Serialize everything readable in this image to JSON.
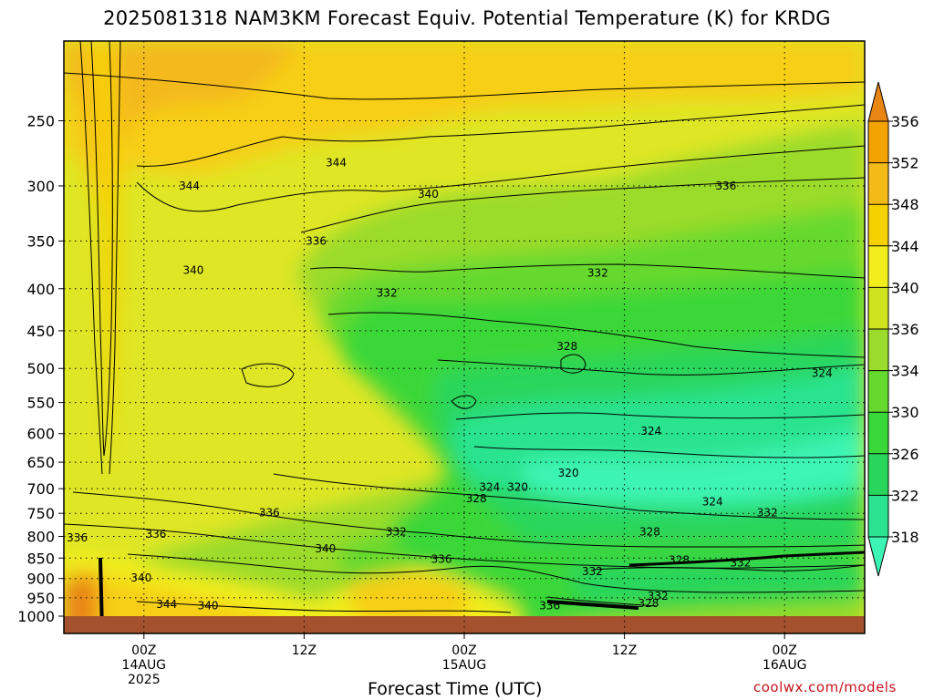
{
  "page": {
    "title": "2025081318 NAM3KM Forecast Equiv. Potential Temperature (K) for KRDG",
    "credit": "coolwx.com/models"
  },
  "chart_data": {
    "type": "heatmap",
    "title": "2025081318 NAM3KM Forecast Equiv. Potential Temperature (K) for KRDG",
    "xlabel": "Forecast Time (UTC)",
    "ylabel": "",
    "y_scale": "log (pressure, inverted)",
    "ylim": [
      1000,
      200
    ],
    "y_ticks": [
      250,
      300,
      350,
      400,
      450,
      500,
      550,
      600,
      650,
      700,
      750,
      800,
      850,
      900,
      950,
      1000
    ],
    "x_ticks": [
      {
        "hour": 6,
        "label": [
          "00Z",
          "14AUG",
          "2025"
        ]
      },
      {
        "hour": 18,
        "label": [
          "12Z"
        ]
      },
      {
        "hour": 30,
        "label": [
          "00Z",
          "15AUG"
        ]
      },
      {
        "hour": 42,
        "label": [
          "12Z"
        ]
      },
      {
        "hour": 54,
        "label": [
          "00Z",
          "16AUG"
        ]
      }
    ],
    "xlim_hours": [
      0,
      60
    ],
    "colorbar": {
      "levels": [
        318,
        322,
        326,
        330,
        334,
        336,
        340,
        344,
        348,
        352,
        356
      ],
      "colors": [
        "#3cf5b4",
        "#2ae38f",
        "#29d65c",
        "#3ad739",
        "#66d92f",
        "#9adb2c",
        "#cfe41f",
        "#f2ee1d",
        "#f6d100",
        "#f4ba18",
        "#f2a300",
        "#e98513"
      ],
      "placement": "right"
    },
    "contour_labels": [
      {
        "value": "344",
        "t": 20.4,
        "p": 281
      },
      {
        "value": "344",
        "t": 9.4,
        "p": 300
      },
      {
        "value": "340",
        "t": 27.3,
        "p": 307
      },
      {
        "value": "336",
        "t": 49.6,
        "p": 300
      },
      {
        "value": "336",
        "t": 18.9,
        "p": 350
      },
      {
        "value": "340",
        "t": 9.7,
        "p": 380
      },
      {
        "value": "332",
        "t": 24.2,
        "p": 405
      },
      {
        "value": "332",
        "t": 40.0,
        "p": 383
      },
      {
        "value": "328",
        "t": 37.7,
        "p": 470
      },
      {
        "value": "324",
        "t": 56.8,
        "p": 507
      },
      {
        "value": "324",
        "t": 44.0,
        "p": 596
      },
      {
        "value": "320",
        "t": 37.8,
        "p": 670
      },
      {
        "value": "324",
        "t": 31.9,
        "p": 697
      },
      {
        "value": "320",
        "t": 34.0,
        "p": 697
      },
      {
        "value": "328",
        "t": 30.9,
        "p": 720
      },
      {
        "value": "336",
        "t": 15.4,
        "p": 749
      },
      {
        "value": "324",
        "t": 48.6,
        "p": 726
      },
      {
        "value": "332",
        "t": 52.7,
        "p": 749
      },
      {
        "value": "336",
        "t": 1.0,
        "p": 803
      },
      {
        "value": "336",
        "t": 6.9,
        "p": 795
      },
      {
        "value": "332",
        "t": 24.9,
        "p": 790
      },
      {
        "value": "328",
        "t": 43.9,
        "p": 790
      },
      {
        "value": "340",
        "t": 19.6,
        "p": 828
      },
      {
        "value": "336",
        "t": 28.3,
        "p": 853
      },
      {
        "value": "328",
        "t": 46.1,
        "p": 855
      },
      {
        "value": "332",
        "t": 50.7,
        "p": 861
      },
      {
        "value": "340",
        "t": 5.8,
        "p": 898
      },
      {
        "value": "332",
        "t": 39.6,
        "p": 883
      },
      {
        "value": "332",
        "t": 44.5,
        "p": 945
      },
      {
        "value": "328",
        "t": 43.8,
        "p": 965
      },
      {
        "value": "336",
        "t": 36.4,
        "p": 971
      },
      {
        "value": "344",
        "t": 7.7,
        "p": 967
      },
      {
        "value": "340",
        "t": 10.8,
        "p": 971
      }
    ]
  }
}
